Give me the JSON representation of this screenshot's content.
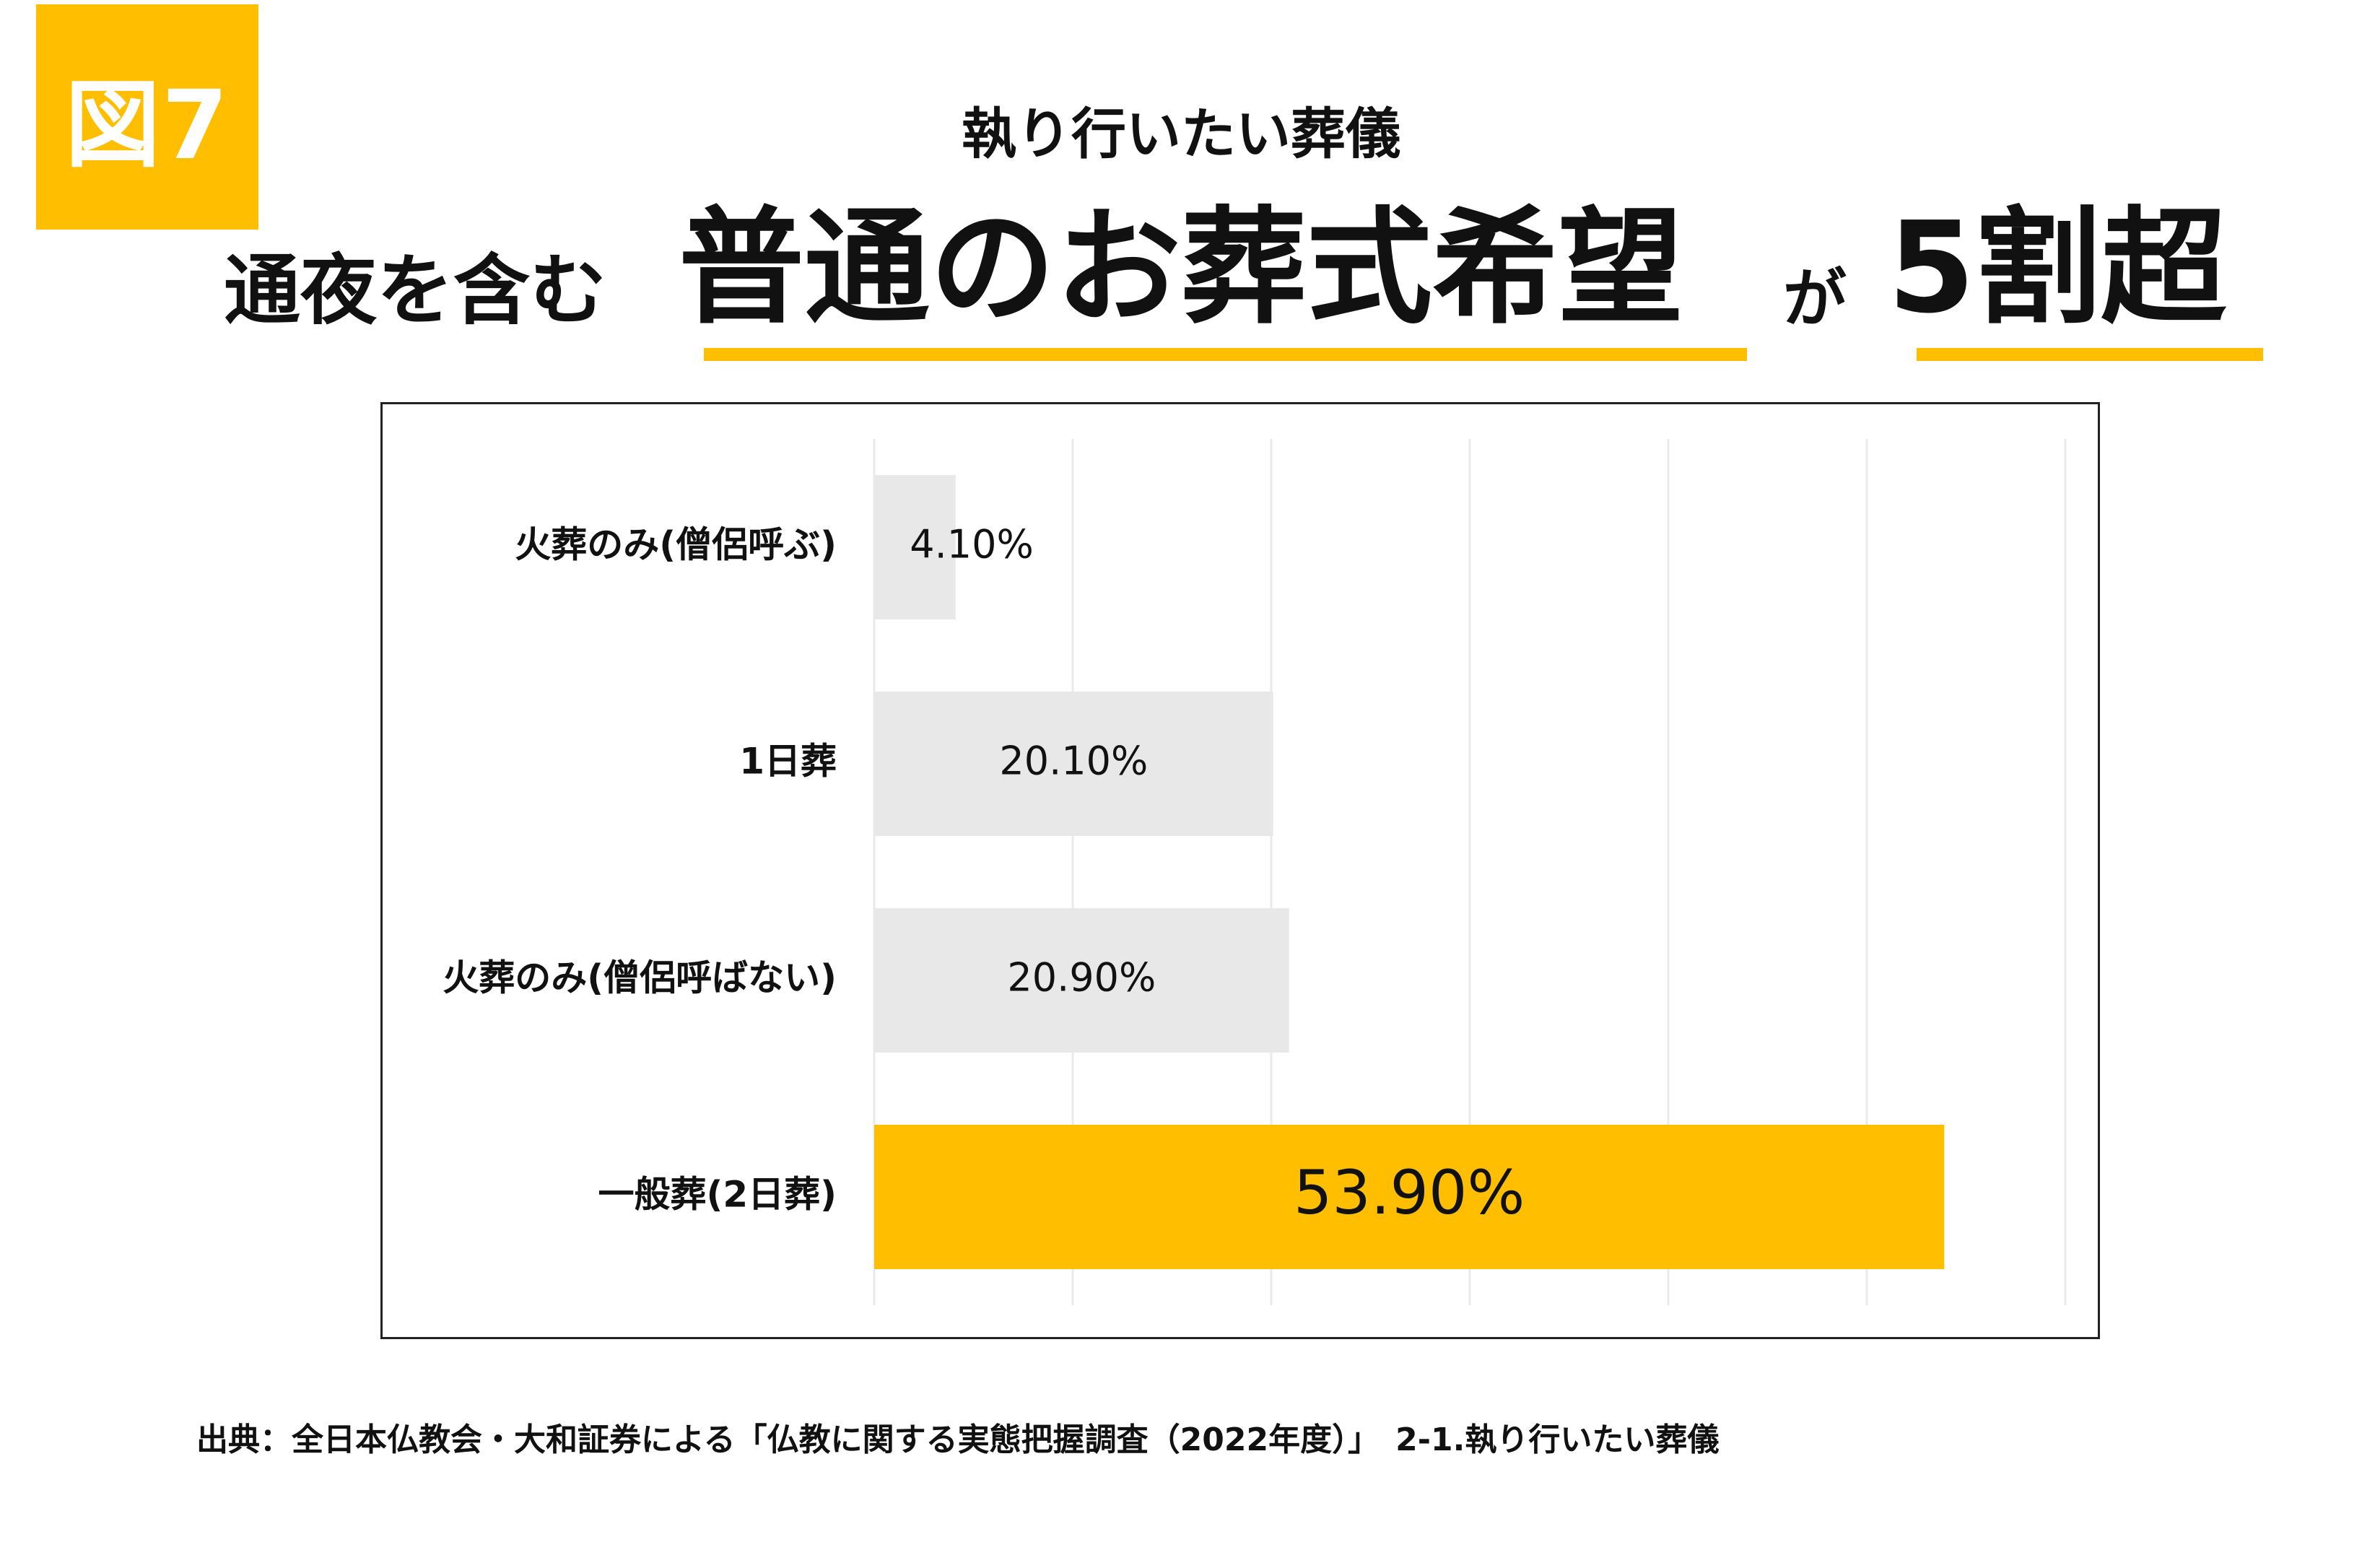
{
  "figure_label": "図7",
  "subtitle": "執り行いたい葬儀",
  "headline": {
    "part1": "通夜を含む",
    "part2": "普通のお葬式希望",
    "part3": "が",
    "part4": "5割超"
  },
  "source_note": "出典：全日本仏教会・大和証券による「仏教に関する実態把握調査（2022年度）」　2-1.執り行いたい葬儀",
  "colors": {
    "accent": "#FFBF00",
    "bar_default": "#E8E8E8",
    "bar_highlight": "#FFBF00",
    "grid": "#EAEAEA",
    "frame": "#222222"
  },
  "chart_data": {
    "type": "bar",
    "orientation": "horizontal",
    "categories": [
      "火葬のみ(僧侶呼ぶ)",
      "1日葬",
      "火葬のみ(僧侶呼ばない)",
      "一般葬(2日葬)"
    ],
    "values": [
      4.1,
      20.1,
      20.9,
      53.9
    ],
    "value_labels": [
      "4.10%",
      "20.10%",
      "20.90%",
      "53.90%"
    ],
    "highlight_index": 3,
    "xlim": [
      0,
      60
    ],
    "grid": true,
    "legend": "none",
    "title": "",
    "xlabel": "",
    "ylabel": ""
  }
}
